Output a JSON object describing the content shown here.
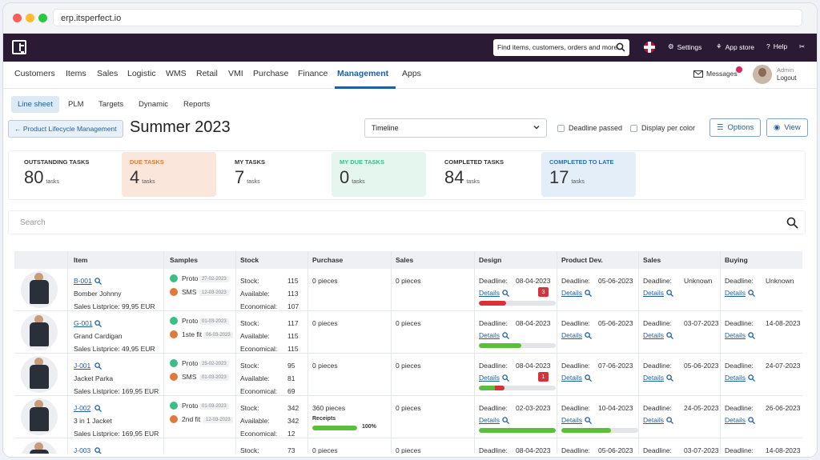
{
  "browser": {
    "url": "erp.itsperfect.io"
  },
  "topbar": {
    "search_placeholder": "Find items, customers, orders and more",
    "settings": "Settings",
    "app_store": "App store",
    "help": "Help"
  },
  "nav": {
    "items": [
      "Customers",
      "Items",
      "Sales",
      "Logistic",
      "WMS",
      "Retail",
      "VMI",
      "Purchase",
      "Finance",
      "Management",
      "Apps"
    ],
    "active": "Management",
    "messages": "Messages",
    "user_role": "Admin",
    "logout": "Logout"
  },
  "subnav": {
    "tabs": [
      "Line sheet",
      "PLM",
      "Targets",
      "Dynamic",
      "Reports"
    ],
    "active": "Line sheet"
  },
  "page": {
    "back": "Product Lifecycle Management",
    "title": "Summer 2023",
    "view_select": "Timeline",
    "deadline_passed": "Deadline passed",
    "display_per_color": "Display per color",
    "options": "Options",
    "view": "View"
  },
  "stats": [
    {
      "label": "OUTSTANDING TASKS",
      "value": "80",
      "unit": "tasks",
      "color": "#333333"
    },
    {
      "label": "DUE TASKS",
      "value": "4",
      "unit": "tasks",
      "color": "#e07a3a"
    },
    {
      "label": "MY TASKS",
      "value": "7",
      "unit": "tasks",
      "color": "#333333"
    },
    {
      "label": "MY DUE TASKS",
      "value": "0",
      "unit": "tasks",
      "color": "#3bbf86"
    },
    {
      "label": "COMPLETED TASKS",
      "value": "84",
      "unit": "tasks",
      "color": "#333333"
    },
    {
      "label": "COMPLETED TO LATE",
      "value": "17",
      "unit": "tasks",
      "color": "#2f6fb3"
    }
  ],
  "search": {
    "placeholder": "Search"
  },
  "table": {
    "headers": [
      "Item",
      "Samples",
      "Stock",
      "Purchase",
      "Sales",
      "Design",
      "Product Dev.",
      "Sales",
      "Buying"
    ],
    "stock_labels": [
      "Stock:",
      "Available:",
      "Economical:"
    ],
    "deadline_label": "Deadline:",
    "details_label": "Details",
    "rows": [
      {
        "code": "B-001",
        "name": "Bomber Johnny",
        "price": "Sales Listprice: 99,95 EUR",
        "samples": [
          {
            "name": "Proto",
            "date": "27-02-2023",
            "color": "#3bbf86"
          },
          {
            "name": "SMS",
            "date": "12-03-2023",
            "color": "#e07a3a"
          }
        ],
        "stock": [
          "115",
          "113",
          "107"
        ],
        "purchase": "0 pieces",
        "receipts": "",
        "receipts_pct": "",
        "receipts_progress": 0,
        "sales": "0 pieces",
        "design": {
          "deadline": "08-04-2023",
          "progress": 0.35,
          "color": "#d9313c",
          "badge": "3"
        },
        "product_dev": "05-06-2023",
        "sales_deadline": "Unknown",
        "buying": "Unknown"
      },
      {
        "code": "G-001",
        "name": "Grand Cardigan",
        "price": "Sales Listprice: 49,95 EUR",
        "samples": [
          {
            "name": "Proto",
            "date": "01-03-2023",
            "color": "#3bbf86"
          },
          {
            "name": "1ste fit",
            "date": "06-03-2023",
            "color": "#e07a3a"
          }
        ],
        "stock": [
          "117",
          "115",
          "115"
        ],
        "purchase": "0 pieces",
        "receipts": "",
        "receipts_pct": "",
        "receipts_progress": 0,
        "sales": "0 pieces",
        "design": {
          "deadline": "08-04-2023",
          "progress": 0.55,
          "color": "#5cbf3c",
          "badge": ""
        },
        "product_dev": "05-06-2023",
        "sales_deadline": "03-07-2023",
        "buying": "14-08-2023"
      },
      {
        "code": "J-001",
        "name": "Jacket Parka",
        "price": "Sales Listprice: 169,95 EUR",
        "samples": [
          {
            "name": "Proto",
            "date": "25-02-2023",
            "color": "#3bbf86"
          },
          {
            "name": "SMS",
            "date": "01-03-2023",
            "color": "#e07a3a"
          }
        ],
        "stock": [
          "95",
          "81",
          "69"
        ],
        "purchase": "0 pieces",
        "receipts": "",
        "receipts_pct": "",
        "receipts_progress": 0,
        "sales": "0 pieces",
        "design": {
          "deadline": "08-04-2023",
          "progress": 0.33,
          "color": "#5cbf3c",
          "badge": "1"
        },
        "product_dev": "07-06-2023",
        "sales_deadline": "05-06-2023",
        "buying": "24-07-2023"
      },
      {
        "code": "J-002",
        "name": "3 in 1 Jacket",
        "price": "Sales Listprice: 169,95 EUR",
        "samples": [
          {
            "name": "Proto",
            "date": "01-03-2023",
            "color": "#3bbf86"
          },
          {
            "name": "2nd fit",
            "date": "12-03-2023",
            "color": "#e07a3a"
          }
        ],
        "stock": [
          "342",
          "342",
          "12"
        ],
        "purchase": "360 pieces",
        "receipts": "Receipts",
        "receipts_pct": "100%",
        "receipts_progress": 1.0,
        "sales": "0 pieces",
        "design": {
          "deadline": "02-03-2023",
          "progress": 1.0,
          "color": "#5cbf3c",
          "badge": ""
        },
        "product_dev": "10-04-2023",
        "product_dev_progress": 0.65,
        "sales_deadline": "24-05-2023",
        "buying": "26-06-2023"
      },
      {
        "code": "J-003",
        "name": "",
        "price": "",
        "samples": [],
        "stock": [
          "73",
          "",
          ""
        ],
        "purchase": "0 pieces",
        "receipts": "",
        "receipts_pct": "",
        "receipts_progress": 0,
        "sales": "0 pieces",
        "design": {
          "deadline": "08-04-2023",
          "progress": 0,
          "color": "#5cbf3c",
          "badge": ""
        },
        "product_dev": "05-06-2023",
        "sales_deadline": "03-07-2023",
        "buying": "14-08-2023"
      }
    ]
  }
}
